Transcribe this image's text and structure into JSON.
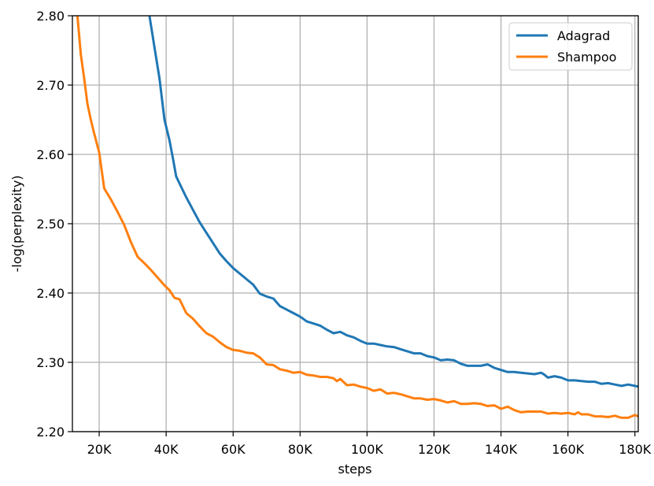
{
  "chart_data": {
    "type": "line",
    "xlabel": "steps",
    "ylabel": "-log(perplexity)",
    "xlim": [
      12000,
      181000
    ],
    "ylim": [
      2.2,
      2.8
    ],
    "grid": true,
    "legend_position": "top-right",
    "xticks": [
      20000,
      40000,
      60000,
      80000,
      100000,
      120000,
      140000,
      160000,
      180000
    ],
    "xtick_labels": [
      "20K",
      "40K",
      "60K",
      "80K",
      "100K",
      "120K",
      "140K",
      "160K",
      "180K"
    ],
    "yticks": [
      2.2,
      2.3,
      2.4,
      2.5,
      2.6,
      2.7,
      2.8
    ],
    "ytick_labels": [
      "2.20",
      "2.30",
      "2.40",
      "2.50",
      "2.60",
      "2.70",
      "2.80"
    ],
    "colors": {
      "Adagrad": "#1f77b4",
      "Shampoo": "#ff7f0e"
    },
    "series": [
      {
        "name": "Adagrad",
        "x": [
          35000,
          36500,
          38000,
          39500,
          41000,
          42000,
          43000,
          44500,
          46000,
          48000,
          50000,
          52000,
          54000,
          56000,
          58000,
          60000,
          62000,
          64000,
          66000,
          68000,
          70000,
          72000,
          74000,
          76000,
          78000,
          80000,
          82000,
          84000,
          86000,
          88000,
          90000,
          92000,
          94000,
          96000,
          98000,
          100000,
          102000,
          104000,
          106000,
          108000,
          110000,
          112000,
          114000,
          116000,
          118000,
          120000,
          122000,
          124000,
          126000,
          128000,
          130000,
          132000,
          134000,
          136000,
          138000,
          140000,
          142000,
          144000,
          146000,
          148000,
          150000,
          152000,
          153000,
          154000,
          156000,
          158000,
          160000,
          162000,
          164000,
          166000,
          168000,
          170000,
          172000,
          174000,
          176000,
          178000,
          180000,
          181000
        ],
        "y": [
          2.8,
          2.755,
          2.71,
          2.65,
          2.62,
          2.595,
          2.568,
          2.553,
          2.538,
          2.52,
          2.502,
          2.487,
          2.472,
          2.457,
          2.446,
          2.436,
          2.428,
          2.42,
          2.412,
          2.399,
          2.395,
          2.392,
          2.381,
          2.376,
          2.371,
          2.366,
          2.359,
          2.356,
          2.353,
          2.347,
          2.342,
          2.344,
          2.339,
          2.336,
          2.331,
          2.327,
          2.327,
          2.325,
          2.323,
          2.322,
          2.319,
          2.316,
          2.313,
          2.313,
          2.309,
          2.307,
          2.303,
          2.304,
          2.303,
          2.298,
          2.295,
          2.295,
          2.295,
          2.297,
          2.292,
          2.289,
          2.286,
          2.286,
          2.285,
          2.284,
          2.283,
          2.285,
          2.282,
          2.278,
          2.28,
          2.278,
          2.274,
          2.274,
          2.273,
          2.272,
          2.272,
          2.269,
          2.27,
          2.268,
          2.266,
          2.268,
          2.266,
          2.265
        ]
      },
      {
        "name": "Shampoo",
        "x": [
          13500,
          14500,
          15500,
          16500,
          17500,
          18500,
          20000,
          21500,
          23500,
          25500,
          27500,
          29500,
          31500,
          33500,
          35500,
          37500,
          39500,
          41000,
          42500,
          44000,
          46000,
          48000,
          50000,
          52000,
          54000,
          56000,
          58000,
          60000,
          61500,
          62500,
          64000,
          66000,
          68000,
          70000,
          72000,
          74000,
          76000,
          78000,
          80000,
          82000,
          84000,
          86000,
          88000,
          90000,
          91000,
          92000,
          94000,
          96000,
          98000,
          100000,
          102000,
          104000,
          106000,
          108000,
          110000,
          112000,
          114000,
          116000,
          118000,
          120000,
          122000,
          124000,
          126000,
          128000,
          130000,
          132000,
          134000,
          136000,
          138000,
          140000,
          142000,
          144000,
          146000,
          148000,
          150000,
          152000,
          154000,
          156000,
          158000,
          160000,
          162000,
          163000,
          164000,
          166000,
          168000,
          170000,
          172000,
          174000,
          176000,
          178000,
          180000,
          181000
        ],
        "y": [
          2.8,
          2.745,
          2.71,
          2.673,
          2.65,
          2.63,
          2.603,
          2.551,
          2.535,
          2.517,
          2.498,
          2.473,
          2.452,
          2.443,
          2.433,
          2.422,
          2.411,
          2.404,
          2.393,
          2.391,
          2.371,
          2.363,
          2.352,
          2.342,
          2.337,
          2.329,
          2.322,
          2.318,
          2.317,
          2.316,
          2.314,
          2.313,
          2.307,
          2.297,
          2.296,
          2.29,
          2.288,
          2.285,
          2.286,
          2.282,
          2.281,
          2.279,
          2.279,
          2.277,
          2.273,
          2.276,
          2.267,
          2.268,
          2.265,
          2.263,
          2.259,
          2.261,
          2.255,
          2.256,
          2.254,
          2.251,
          2.248,
          2.248,
          2.246,
          2.247,
          2.245,
          2.242,
          2.244,
          2.24,
          2.24,
          2.241,
          2.24,
          2.237,
          2.238,
          2.233,
          2.236,
          2.231,
          2.228,
          2.229,
          2.229,
          2.229,
          2.226,
          2.227,
          2.226,
          2.227,
          2.225,
          2.228,
          2.225,
          2.225,
          2.222,
          2.222,
          2.221,
          2.223,
          2.22,
          2.22,
          2.224,
          2.222
        ]
      }
    ]
  }
}
